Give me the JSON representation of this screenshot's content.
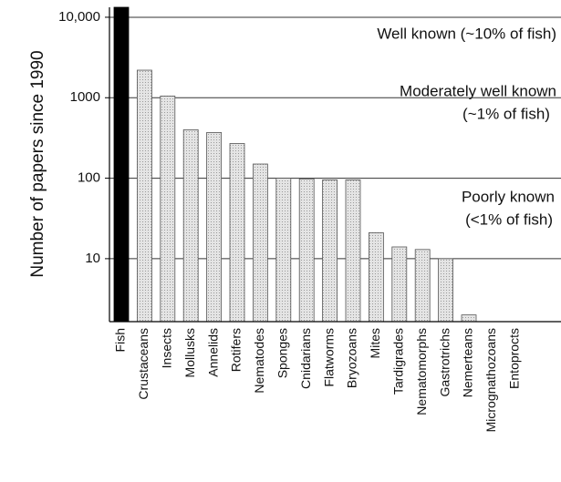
{
  "chart_data": {
    "type": "bar",
    "y_label": "Number of papers since 1990",
    "categories": [
      "Fish",
      "Crustaceans",
      "Insects",
      "Mollusks",
      "Annelids",
      "Rotifers",
      "Nematodes",
      "Sponges",
      "Cnidarians",
      "Flatworms",
      "Bryozoans",
      "Mites",
      "Tardigrades",
      "Nematomorphs",
      "Gastrotrichs",
      "Nemerteans",
      "Micrognathozoans",
      "Entoprocts"
    ],
    "values": [
      13300,
      2200,
      1050,
      400,
      370,
      270,
      150,
      100,
      98,
      95,
      95,
      21,
      14,
      13,
      10,
      2,
      null,
      null
    ],
    "colors": [
      "#000000",
      "#d9d9d9",
      "#d9d9d9",
      "#d9d9d9",
      "#d9d9d9",
      "#d9d9d9",
      "#d9d9d9",
      "#d9d9d9",
      "#d9d9d9",
      "#d9d9d9",
      "#d9d9d9",
      "#d9d9d9",
      "#d9d9d9",
      "#d9d9d9",
      "#d9d9d9",
      "#d9d9d9",
      "#d9d9d9",
      "#d9d9d9"
    ],
    "log_scale": true,
    "ylim": [
      1.65,
      13300
    ],
    "yticks": [
      10,
      100,
      1000,
      {
        "value": 10000,
        "label": "10,000"
      }
    ],
    "grid": true,
    "annotations": [
      "Well known (~10% of fish)",
      "Moderately well known",
      "(~1% of fish)",
      "Poorly known",
      "(<1% of fish)"
    ]
  }
}
